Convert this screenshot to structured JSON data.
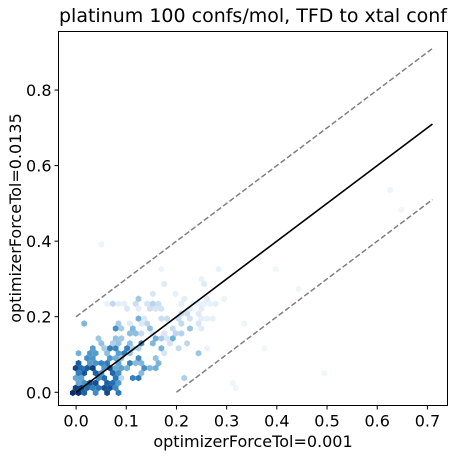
{
  "chart_data": {
    "type": "hexbin",
    "title": "platinum 100 confs/mol, TFD to xtal conf",
    "xlabel": "optimizerForceTol=0.001",
    "ylabel": "optimizerForceTol=0.0135",
    "xlim": [
      -0.035,
      0.74
    ],
    "ylim": [
      -0.035,
      0.955
    ],
    "xticks": [
      0.0,
      0.1,
      0.2,
      0.3,
      0.4,
      0.5,
      0.6,
      0.7
    ],
    "xtick_labels": [
      "0.0",
      "0.1",
      "0.2",
      "0.3",
      "0.4",
      "0.5",
      "0.6",
      "0.7"
    ],
    "yticks": [
      0.0,
      0.2,
      0.4,
      0.6,
      0.8
    ],
    "ytick_labels": [
      "0.0",
      "0.2",
      "0.4",
      "0.6",
      "0.8"
    ],
    "grid": false,
    "colormap": [
      "#f7fbff",
      "#c6dbef",
      "#6baed6",
      "#2171b5",
      "#08306b"
    ],
    "lines": [
      {
        "style": "solid",
        "color": "#000000",
        "x": [
          0.0,
          0.71
        ],
        "y": [
          0.0,
          0.71
        ]
      },
      {
        "style": "dashed",
        "color": "#808080",
        "x": [
          0.0,
          0.71
        ],
        "y": [
          0.2,
          0.91
        ]
      },
      {
        "style": "dashed",
        "color": "#808080",
        "x": [
          0.2,
          0.71
        ],
        "y": [
          0.0,
          0.51
        ]
      }
    ],
    "density_clusters": [
      {
        "cx": 0.0,
        "cy": 0.0,
        "spread": 0.01,
        "count": 25,
        "intensity": 1.0
      },
      {
        "cx": 0.03,
        "cy": 0.03,
        "spread": 0.03,
        "count": 60,
        "intensity": 0.85
      },
      {
        "cx": 0.07,
        "cy": 0.07,
        "spread": 0.04,
        "count": 70,
        "intensity": 0.65
      },
      {
        "cx": 0.12,
        "cy": 0.12,
        "spread": 0.045,
        "count": 55,
        "intensity": 0.45
      },
      {
        "cx": 0.18,
        "cy": 0.18,
        "spread": 0.04,
        "count": 35,
        "intensity": 0.25
      },
      {
        "cx": 0.24,
        "cy": 0.22,
        "spread": 0.04,
        "count": 20,
        "intensity": 0.12
      },
      {
        "cx": 0.1,
        "cy": 0.2,
        "spread": 0.03,
        "count": 12,
        "intensity": 0.15
      }
    ],
    "sparse_points": [
      {
        "x": 0.05,
        "y": 0.39,
        "v": 0.05
      },
      {
        "x": 0.28,
        "y": 0.33,
        "v": 0.08
      },
      {
        "x": 0.22,
        "y": 0.25,
        "v": 0.1
      },
      {
        "x": 0.29,
        "y": 0.25,
        "v": 0.06
      },
      {
        "x": 0.44,
        "y": 0.28,
        "v": 0.05
      },
      {
        "x": 0.31,
        "y": 0.03,
        "v": 0.05
      },
      {
        "x": 0.32,
        "y": 0.01,
        "v": 0.04
      },
      {
        "x": 0.5,
        "y": 0.05,
        "v": 0.04
      },
      {
        "x": 0.62,
        "y": 0.53,
        "v": 0.05
      },
      {
        "x": 0.65,
        "y": 0.48,
        "v": 0.04
      },
      {
        "x": 0.4,
        "y": 0.33,
        "v": 0.04
      },
      {
        "x": 0.17,
        "y": 0.33,
        "v": 0.05
      },
      {
        "x": 0.06,
        "y": 0.24,
        "v": 0.07
      },
      {
        "x": 0.34,
        "y": 0.18,
        "v": 0.05
      },
      {
        "x": 0.38,
        "y": 0.12,
        "v": 0.04
      },
      {
        "x": 0.17,
        "y": 0.11,
        "v": 0.06
      },
      {
        "x": 0.26,
        "y": 0.12,
        "v": 0.06
      }
    ]
  }
}
